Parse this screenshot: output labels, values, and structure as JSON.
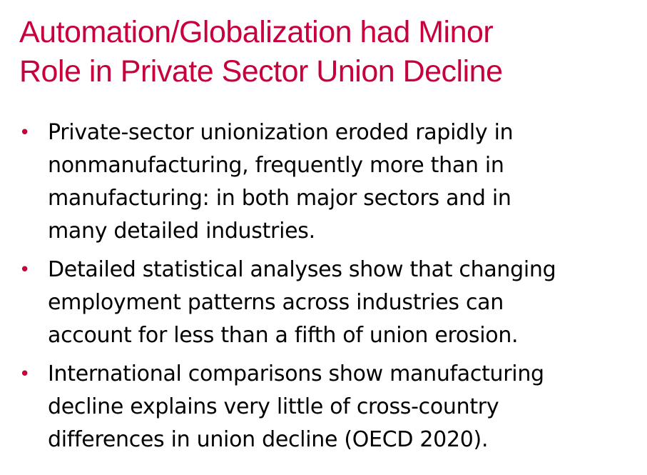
{
  "slide": {
    "title_line1": "Automation/Globalization had Minor",
    "title_line2": "Role in Private Sector Union Decline",
    "bullet_symbol": "•",
    "bullets": [
      {
        "lines": [
          "Private-sector unionization eroded rapidly in",
          "nonmanufacturing, frequently more than in",
          "manufacturing: in both major sectors and in",
          "many detailed industries."
        ]
      },
      {
        "lines": [
          "Detailed statistical analyses show that changing",
          "employment patterns across industries can",
          "account for less than a fifth of union erosion."
        ]
      },
      {
        "lines": [
          "International comparisons show manufacturing",
          "decline explains very little of cross-country",
          "differences in union decline (OECD 2020)."
        ]
      }
    ]
  },
  "colors": {
    "accent": "#c8003c",
    "text": "#000000",
    "background": "#ffffff"
  }
}
